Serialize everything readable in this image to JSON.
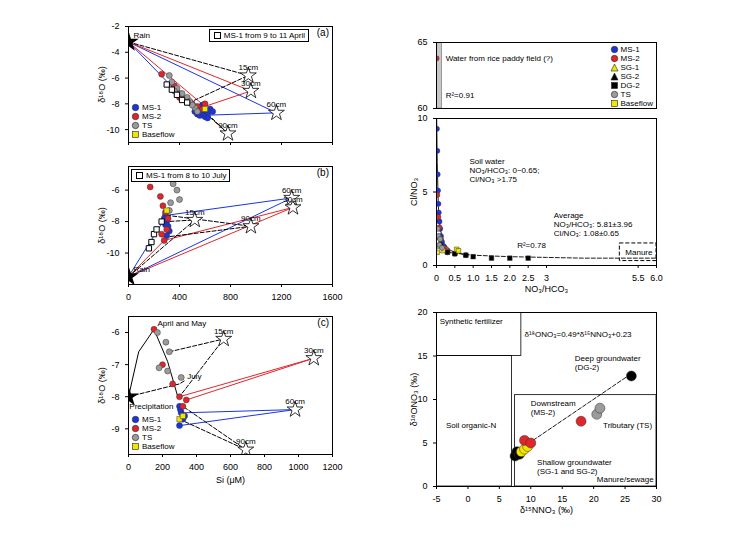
{
  "chart_data": [
    {
      "type": "scatter",
      "title": "(a)",
      "y_label": "δ¹⁸O (‰)",
      "xlim": [
        0,
        800
      ],
      "xticks": [
        0,
        200,
        400,
        600,
        800
      ],
      "ylim": [
        -11,
        -2
      ],
      "yticks": [
        -2,
        -4,
        -6,
        -8,
        -10
      ],
      "tick_labels": "y",
      "legend": "bottom-left",
      "series": [
        {
          "name": "MS-1",
          "color": "#1a35e0",
          "marker": "circle",
          "x": [
            260,
            270,
            280,
            290,
            300,
            310,
            320,
            300,
            280,
            330,
            290,
            310
          ],
          "y": [
            -8.6,
            -8.8,
            -8.9,
            -8.7,
            -8.5,
            -8.8,
            -8.4,
            -9.0,
            -8.3,
            -8.6,
            -8.1,
            -9.1
          ]
        },
        {
          "name": "MS-2",
          "color": "#e0262b",
          "marker": "circle",
          "x": [
            130,
            180,
            200,
            220,
            250,
            270,
            240,
            290,
            300,
            200
          ],
          "y": [
            -5.7,
            -6.6,
            -7.2,
            -7.6,
            -8.0,
            -8.2,
            -7.9,
            -8.4,
            -8.0,
            -7.5
          ]
        },
        {
          "name": "TS",
          "color": "#9b9b9b",
          "marker": "circle",
          "x": [
            160,
            170,
            190,
            210,
            180,
            230,
            240,
            260,
            270,
            250
          ],
          "y": [
            -5.8,
            -6.3,
            -6.8,
            -7.2,
            -7.0,
            -7.5,
            -7.8,
            -8.3,
            -8.6,
            -8.1
          ]
        },
        {
          "name": "Baseflow",
          "color": "#f2e600",
          "marker": "square",
          "x": [
            300
          ],
          "y": [
            -8.4
          ]
        },
        {
          "name": "MS-1 from 9 to 11 April",
          "color": "#000000",
          "marker": "square_open",
          "x": [
            150,
            170,
            190,
            210,
            230
          ],
          "y": [
            -6.5,
            -6.9,
            -7.3,
            -7.7,
            -7.9
          ]
        }
      ],
      "end_member": {
        "label": "Rain",
        "x": 0,
        "y": -3.2
      },
      "soil_water": {
        "labels": [
          "15cm",
          "30cm",
          "60cm",
          "90cm"
        ],
        "x": [
          470,
          480,
          580,
          390
        ],
        "y": [
          -5.8,
          -7.0,
          -8.7,
          -10.3
        ]
      },
      "mixing_lines": [
        {
          "color": "#1a35e0",
          "line_style": "solid",
          "x": [
            0,
            580,
            280,
            0
          ],
          "y": [
            -3.2,
            -8.7,
            -8.9,
            -3.2
          ]
        },
        {
          "color": "#e0262b",
          "line_style": "solid",
          "x": [
            0,
            480,
            300,
            0
          ],
          "y": [
            -3.2,
            -7.0,
            -8.2,
            -3.2
          ]
        },
        {
          "color": "#000000",
          "line_style": "dashed",
          "x": [
            0,
            470,
            250
          ],
          "y": [
            -3.2,
            -5.8,
            -7.8
          ]
        },
        {
          "color": "#000000",
          "line_style": "dashed",
          "x": [
            250,
            390,
            300
          ],
          "y": [
            -7.8,
            -10.3,
            -8.6
          ]
        }
      ]
    },
    {
      "type": "scatter",
      "title": "(b)",
      "y_label": "δ¹⁸O (‰)",
      "xlim": [
        0,
        1600
      ],
      "xticks": [
        0,
        400,
        800,
        1200,
        1600
      ],
      "ylim": [
        -12,
        -4.5
      ],
      "yticks": [
        -6,
        -8,
        -10
      ],
      "series": [
        {
          "color": "#1a35e0",
          "marker": "circle",
          "x": [
            290,
            300,
            310,
            320,
            300,
            290,
            280
          ],
          "y": [
            -7.6,
            -8.0,
            -8.3,
            -8.6,
            -8.9,
            -8.2,
            -7.8
          ]
        },
        {
          "color": "#e0262b",
          "marker": "circle",
          "x": [
            170,
            250,
            270,
            290,
            310,
            300,
            280,
            260
          ],
          "y": [
            -5.8,
            -6.4,
            -7.0,
            -7.4,
            -7.8,
            -8.5,
            -9.2,
            -8.8
          ]
        },
        {
          "color": "#9b9b9b",
          "marker": "circle",
          "x": [
            350,
            380,
            330,
            400,
            320
          ],
          "y": [
            -5.6,
            -6.0,
            -6.8,
            -6.6,
            -7.3
          ]
        },
        {
          "color": "#f2e600",
          "marker": "square",
          "x": [
            300
          ],
          "y": [
            -7.3
          ]
        },
        {
          "name": "MS-1 from 8 to 10 July",
          "color": "#000000",
          "marker": "square_open",
          "x": [
            200,
            180,
            160,
            220,
            260
          ],
          "y": [
            -8.8,
            -9.3,
            -9.7,
            -8.5,
            -8.0
          ]
        }
      ],
      "end_member": {
        "label": "Rain",
        "x": 0,
        "y": -11.5
      },
      "soil_water": {
        "labels": [
          "15cm",
          "30cm",
          "60cm",
          "90cm"
        ],
        "x": [
          520,
          1290,
          1280,
          960
        ],
        "y": [
          -7.9,
          -7.1,
          -6.5,
          -8.3
        ]
      },
      "mixing_lines": [
        {
          "color": "#1a35e0",
          "line_style": "solid",
          "x": [
            0,
            1280,
            300,
            0
          ],
          "y": [
            -11.5,
            -6.5,
            -7.6,
            -11.5
          ]
        },
        {
          "color": "#e0262b",
          "line_style": "solid",
          "x": [
            0,
            1290,
            280,
            0
          ],
          "y": [
            -11.5,
            -7.1,
            -9.2,
            -11.5
          ]
        },
        {
          "color": "#000000",
          "line_style": "dashed",
          "x": [
            0,
            520,
            300
          ],
          "y": [
            -11.5,
            -7.9,
            -8.0
          ]
        },
        {
          "color": "#000000",
          "line_style": "dashed",
          "x": [
            300,
            960,
            280
          ],
          "y": [
            -7.6,
            -8.3,
            -9.0
          ]
        }
      ]
    },
    {
      "type": "scatter",
      "title": "(c)",
      "x_label": "Si (μM)",
      "y_label": "δ¹⁸O (‰)",
      "xlim": [
        0,
        1200
      ],
      "xticks": [
        0,
        200,
        400,
        600,
        800,
        1000,
        1200
      ],
      "ylim": [
        -9.8,
        -5.5
      ],
      "yticks": [
        -6,
        -7,
        -8,
        -9
      ],
      "legend": "bottom-left",
      "series": [
        {
          "name": "MS-1",
          "color": "#1a35e0",
          "marker": "circle",
          "x": [
            300,
            310,
            320,
            300,
            330,
            305
          ],
          "y": [
            -8.3,
            -8.5,
            -8.7,
            -8.9,
            -8.6,
            -8.4
          ]
        },
        {
          "name": "MS-2",
          "color": "#e0262b",
          "marker": "circle",
          "x": [
            150,
            200,
            260,
            300,
            320,
            340
          ],
          "y": [
            -5.9,
            -7.0,
            -7.6,
            -8.0,
            -8.3,
            -8.1
          ]
        },
        {
          "name": "TS",
          "color": "#9b9b9b",
          "marker": "circle",
          "x": [
            170,
            220,
            240,
            180,
            310,
            230
          ],
          "y": [
            -6.0,
            -6.3,
            -6.6,
            -7.1,
            -7.4,
            -7.2
          ]
        },
        {
          "name": "Baseflow",
          "color": "#f2e600",
          "marker": "square",
          "x": [
            300,
            320
          ],
          "y": [
            -8.7,
            -8.6
          ]
        }
      ],
      "end_member": {
        "x": 0,
        "y": -8.0
      },
      "soil_water": {
        "labels": [
          "15cm",
          "30cm",
          "60cm",
          "90cm"
        ],
        "x": [
          560,
          1090,
          980,
          690
        ],
        "y": [
          -6.2,
          -6.8,
          -8.4,
          -9.65
        ]
      },
      "mixing_lines": [
        {
          "color": "#1a35e0",
          "line_style": "solid",
          "x": [
            300,
            980,
            330
          ],
          "y": [
            -8.9,
            -8.4,
            -8.5
          ]
        },
        {
          "color": "#e0262b",
          "line_style": "solid",
          "x": [
            300,
            1090,
            340
          ],
          "y": [
            -8.0,
            -6.8,
            -8.1
          ]
        },
        {
          "color": "#000000",
          "line_style": "dashed",
          "x": [
            240,
            560,
            300
          ],
          "y": [
            -6.6,
            -6.2,
            -8.0
          ]
        },
        {
          "color": "#000000",
          "line_style": "dashed",
          "x": [
            300,
            690,
            320
          ],
          "y": [
            -8.7,
            -9.65,
            -8.3
          ]
        },
        {
          "color": "#000000",
          "line_style": "solid",
          "x": [
            0,
            60,
            150,
            230,
            290
          ],
          "y": [
            -8.0,
            -6.6,
            -5.9,
            -6.9,
            -8.0
          ]
        },
        {
          "color": "#000000",
          "line_style": "dashed",
          "x": [
            0,
            150,
            300,
            330
          ],
          "y": [
            -8.0,
            -7.8,
            -7.6,
            -7.5
          ]
        }
      ],
      "annotations": [
        {
          "text": "April and May",
          "x": 170,
          "y": -5.7
        },
        {
          "text": "July",
          "x": 345,
          "y": -7.35
        },
        {
          "text": "Precipitation",
          "x": 5,
          "y": -8.3
        }
      ]
    },
    {
      "type": "scatter",
      "x_label": "NO₃/HCO₃",
      "y_label": "Cl/NO₃",
      "xlim": [
        0,
        6
      ],
      "xticks": [
        0,
        0.5,
        {
          "value": 1,
          "label": "1.0"
        },
        1.5,
        {
          "value": 2,
          "label": "2.0"
        },
        2.5,
        3,
        5.5,
        {
          "value": 6,
          "label": "6.0"
        }
      ],
      "ylim": [
        0,
        65
      ],
      "y_break": [
        10,
        60
      ],
      "yticks": [
        0,
        5,
        10,
        60,
        65
      ],
      "legend": "top-right",
      "series": [
        {
          "name": "MS-1",
          "color": "#1a35e0",
          "marker": "circle",
          "x": [
            0.01,
            0.02,
            0.03,
            0.04,
            0.05,
            0.06,
            0.08,
            0.1,
            0.12,
            0.15,
            0.2,
            0.3
          ],
          "y": [
            9.3,
            7.8,
            6.2,
            5.1,
            4.2,
            3.6,
            3.0,
            2.5,
            2.0,
            1.6,
            1.3,
            0.9
          ]
        },
        {
          "name": "MS-2",
          "color": "#e0262b",
          "marker": "circle",
          "x": [
            0,
            0.02,
            0.05,
            0.08,
            0.12,
            0.2,
            0.3,
            0.5,
            0.8
          ],
          "y": [
            63.8,
            4.8,
            3.3,
            2.6,
            1.8,
            1.2,
            1.0,
            0.8,
            0.7
          ]
        },
        {
          "name": "SG-1",
          "color": "#f2e600",
          "marker": "triangle",
          "x": [
            0.1,
            0.2
          ],
          "y": [
            1.3,
            1.0
          ]
        },
        {
          "name": "SG-2",
          "color": "#000000",
          "marker": "triangle",
          "x": [
            0.05,
            0.1
          ],
          "y": [
            1.9,
            1.5
          ]
        },
        {
          "name": "DG-2",
          "color": "#000000",
          "marker": "square",
          "x": [
            0.3,
            0.5,
            0.8,
            1.0,
            1.5,
            2.0,
            2.5
          ],
          "y": [
            0.9,
            0.8,
            0.7,
            0.6,
            0.5,
            0.5,
            0.5
          ]
        },
        {
          "name": "TS",
          "color": "#9b9b9b",
          "marker": "circle",
          "x": [
            0.03,
            0.05,
            0.1,
            0.08,
            0.15
          ],
          "y": [
            2.5,
            2.0,
            1.8,
            1.4,
            1.2
          ]
        },
        {
          "name": "Baseflow",
          "color": "#f2e600",
          "marker": "square",
          "x": [
            0.55,
            0.6,
            0.02
          ],
          "y": [
            1.1,
            1.0,
            0.9
          ]
        }
      ],
      "regions": [
        {
          "x": [
            0,
            0.15
          ],
          "y": [
            60,
            65
          ],
          "color": "#c8c8c8"
        },
        {
          "x": [
            5.0,
            6.0
          ],
          "y": [
            0.3,
            1.5
          ],
          "line_style": "dashed"
        }
      ],
      "fit_lines": [
        {
          "line_style": "solid",
          "x": [
            0.005,
            0.02,
            0.05,
            0.1,
            0.2,
            0.4,
            0.8
          ],
          "y": [
            10,
            7,
            4,
            2.5,
            1.5,
            1.0,
            0.7
          ]
        },
        {
          "line_style": "dashed",
          "x": [
            0.3,
            1,
            2,
            3,
            4,
            5,
            6
          ],
          "y": [
            0.9,
            0.7,
            0.6,
            0.55,
            0.5,
            0.5,
            0.5
          ]
        }
      ],
      "annotations": [
        {
          "text": "Water from rice paddy field (?)",
          "x": 0.25,
          "y": 63.8
        },
        {
          "text": "R²=0.91",
          "x": 0.25,
          "y": 61
        },
        {
          "text": "Soil water\nNO₃/HCO₃: 0~0.65;\nCl/NO₃ >1.75",
          "x": 0.9,
          "y": 6.5
        },
        {
          "text": "Average\nNO₃/HCO₃: 5.81±3.96\nCl/NO₃: 1.08±0.65",
          "x": 3.2,
          "y": 2.8
        },
        {
          "text": "R²=0.78",
          "x": 2.2,
          "y": 1.4
        },
        {
          "text": "Manure",
          "x": 5.15,
          "y": 0.9
        }
      ]
    },
    {
      "type": "scatter",
      "x_label": "δ¹⁵NNO₃ (‰)",
      "y_label": "δ¹⁸ONO₃ (‰)",
      "xlim": [
        -5,
        30
      ],
      "xticks": [
        -5,
        0,
        5,
        10,
        15,
        20,
        25,
        30
      ],
      "ylim": [
        0,
        20
      ],
      "yticks": [
        0,
        5,
        10,
        15,
        20
      ],
      "series": [
        {
          "color": "#000000",
          "marker": "circle",
          "x": [
            7.5,
            7.8,
            8.2,
            26
          ],
          "y": [
            3.5,
            4.0,
            3.7,
            12.7
          ]
        },
        {
          "color": "#f2e600",
          "marker": "circle",
          "x": [
            8.5,
            9.0,
            9.5
          ],
          "y": [
            4.0,
            4.3,
            4.6
          ]
        },
        {
          "color": "#e0262b",
          "marker": "circle",
          "x": [
            9.0,
            10.0,
            18.0
          ],
          "y": [
            5.3,
            5.0,
            7.5
          ]
        },
        {
          "color": "#9b9b9b",
          "marker": "circle",
          "x": [
            20.5,
            21.0
          ],
          "y": [
            8.3,
            9.0
          ]
        }
      ],
      "regions": [
        {
          "x": [
            -5,
            8.5
          ],
          "y": [
            15,
            20
          ]
        },
        {
          "x": [
            -5,
            7
          ],
          "y": [
            0,
            15
          ]
        },
        {
          "x": [
            7.5,
            30
          ],
          "y": [
            0,
            10.5
          ]
        }
      ],
      "fit": {
        "slope": 0.49,
        "intercept": 0.23,
        "x": [
          8,
          26
        ],
        "line_style": "dashed"
      },
      "annotations": [
        {
          "text": "Synthetic fertilizer",
          "x": -4.5,
          "y": 19
        },
        {
          "text": "Soil organic-N",
          "x": -3.5,
          "y": 7
        },
        {
          "text": "Manure/sewage",
          "x": 20.5,
          "y": 0.8
        },
        {
          "text": "δ¹⁸ONO₃=0.49*δ¹⁵NNO₃+0.23",
          "x": 9,
          "y": 17.5
        },
        {
          "text": "Deep groundwater\n(DG-2)",
          "x": 17,
          "y": 14.2
        },
        {
          "text": "Downstream\n(MS-2)",
          "x": 10,
          "y": 9.1
        },
        {
          "text": "Tributary (TS)",
          "x": 21.5,
          "y": 7.0
        },
        {
          "text": "Shallow groundwater\n(SG-1 and SG-2)",
          "x": 11,
          "y": 2.3
        }
      ]
    }
  ]
}
